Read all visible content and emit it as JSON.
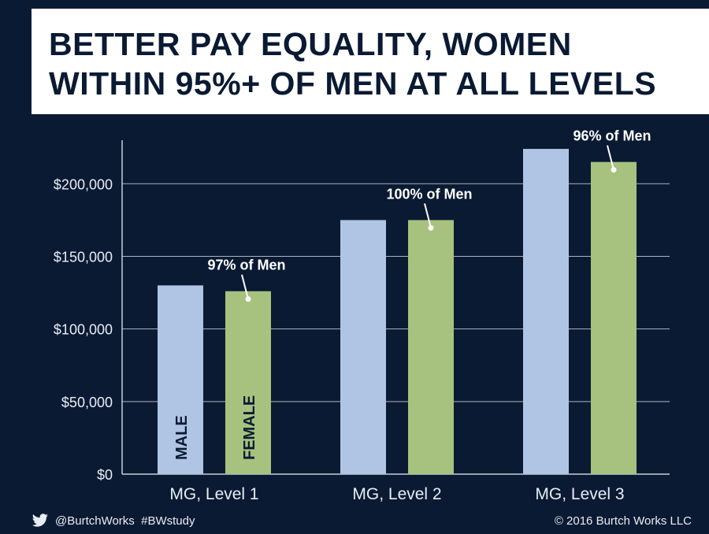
{
  "title": {
    "line1": "BETTER PAY EQUALITY, WOMEN",
    "line2": "WITHIN 95%+ OF MEN AT ALL LEVELS"
  },
  "chart_data": {
    "type": "bar",
    "categories": [
      "MG, Level 1",
      "MG, Level 2",
      "MG, Level 3"
    ],
    "series": [
      {
        "name": "MALE",
        "values": [
          130000,
          175000,
          224000
        ],
        "color": "#b0c4e4"
      },
      {
        "name": "FEMALE",
        "values": [
          126000,
          175000,
          215000
        ],
        "color": "#a6c27e"
      }
    ],
    "annotations": [
      "97% of Men",
      "100% of Men",
      "96% of Men"
    ],
    "y_ticks": [
      "$0",
      "$50,000",
      "$100,000",
      "$150,000",
      "$200,000"
    ],
    "y_tick_values": [
      0,
      50000,
      100000,
      150000,
      200000
    ],
    "ylim": [
      0,
      230000
    ],
    "grid": true,
    "legend": "in-bar labels"
  },
  "footer": {
    "social": "@BurtchWorks  #BWstudy",
    "copyright": "© 2016 Burtch Works LLC"
  },
  "colors": {
    "background": "#0a1a33",
    "annotation_text": "#ffffff",
    "gridline": "#c8ced8"
  }
}
